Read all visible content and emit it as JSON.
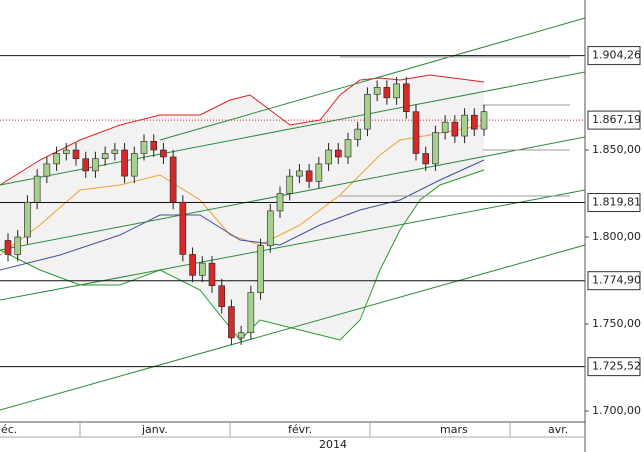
{
  "chart_data": {
    "type": "candlestick",
    "ylim": [
      1693.7,
      1936.2
    ],
    "yticks": [
      {
        "value": 1850,
        "label": "1.850,00"
      },
      {
        "value": 1800,
        "label": "1.800,00"
      },
      {
        "value": 1750,
        "label": "1.750,00"
      },
      {
        "value": 1700,
        "label": "1.700,00"
      }
    ],
    "levels": [
      {
        "value": 1904.26,
        "label": "1.904,26"
      },
      {
        "value": 1867.19,
        "label": "1.867,19"
      },
      {
        "value": 1819.81,
        "label": "1.819,81"
      },
      {
        "value": 1774.9,
        "label": "1.774,90"
      },
      {
        "value": 1725.52,
        "label": "1.725,52"
      }
    ],
    "months": [
      "déc.",
      "janv.",
      "févr.",
      "mars",
      "avr."
    ],
    "year": "2014",
    "up_color": "#a8d08d",
    "down_color": "#d42a2a",
    "open": [
      1798,
      1790,
      1800,
      1820,
      1835,
      1842,
      1848,
      1850,
      1845,
      1838,
      1845,
      1848,
      1850,
      1835,
      1848,
      1855,
      1850,
      1846,
      1820,
      1790,
      1778,
      1785,
      1772,
      1760,
      1742,
      1745,
      1768,
      1795,
      1815,
      1825,
      1835,
      1838,
      1832,
      1842,
      1850,
      1846,
      1856,
      1862,
      1882,
      1886,
      1880,
      1888,
      1872,
      1848,
      1842,
      1860,
      1866,
      1858,
      1870,
      1862
    ],
    "high": [
      1802,
      1804,
      1824,
      1839,
      1846,
      1852,
      1854,
      1854,
      1849,
      1849,
      1852,
      1854,
      1854,
      1852,
      1859,
      1859,
      1854,
      1850,
      1824,
      1794,
      1789,
      1789,
      1776,
      1764,
      1749,
      1772,
      1799,
      1819,
      1829,
      1839,
      1842,
      1842,
      1846,
      1854,
      1854,
      1860,
      1866,
      1886,
      1890,
      1890,
      1892,
      1892,
      1876,
      1852,
      1864,
      1870,
      1870,
      1874,
      1874,
      1876
    ],
    "low": [
      1786,
      1786,
      1796,
      1816,
      1831,
      1838,
      1844,
      1841,
      1834,
      1834,
      1841,
      1844,
      1831,
      1831,
      1844,
      1846,
      1842,
      1816,
      1786,
      1774,
      1774,
      1768,
      1756,
      1738,
      1738,
      1741,
      1764,
      1791,
      1811,
      1821,
      1831,
      1828,
      1828,
      1838,
      1842,
      1842,
      1852,
      1858,
      1878,
      1876,
      1876,
      1868,
      1844,
      1838,
      1838,
      1856,
      1854,
      1854,
      1858,
      1858
    ],
    "close": [
      1790,
      1800,
      1820,
      1835,
      1842,
      1848,
      1850,
      1845,
      1838,
      1845,
      1848,
      1850,
      1835,
      1848,
      1855,
      1850,
      1846,
      1820,
      1790,
      1778,
      1785,
      1772,
      1760,
      1742,
      1745,
      1768,
      1795,
      1815,
      1825,
      1835,
      1838,
      1832,
      1842,
      1850,
      1846,
      1856,
      1862,
      1882,
      1886,
      1880,
      1888,
      1872,
      1848,
      1842,
      1860,
      1866,
      1858,
      1870,
      1862,
      1872
    ]
  }
}
